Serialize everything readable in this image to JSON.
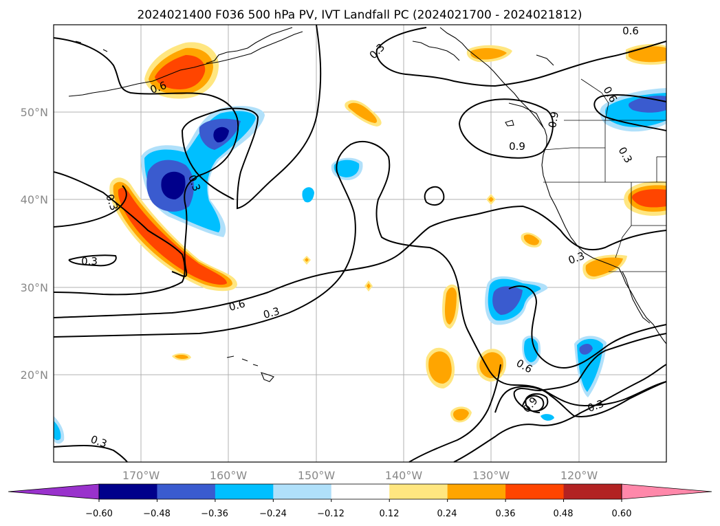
{
  "title": "2024021400 F036 500 hPa PV, IVT Landfall PC (2024021700 - 2024021812)",
  "map": {
    "lon_labels": [
      "170°W",
      "160°W",
      "150°W",
      "140°W",
      "130°W",
      "120°W"
    ],
    "lat_labels": [
      "50°N",
      "40°N",
      "30°N",
      "20°N"
    ],
    "contour_labels": [
      "0.6",
      "0.3",
      "0.6",
      "0.3",
      "0.3",
      "0.9",
      "0.3",
      "0.6",
      "0.3",
      "0.3",
      "0.6",
      "0.3",
      "0.9",
      "0.6",
      "0.9",
      "0.3",
      "0.3"
    ]
  },
  "colorbar": {
    "ticks": [
      "−0.60",
      "−0.48",
      "−0.36",
      "−0.24",
      "−0.12",
      "0.12",
      "0.24",
      "0.36",
      "0.48",
      "0.60"
    ],
    "colors": [
      "#9932cc",
      "#00008b",
      "#3a5bcf",
      "#00bfff",
      "#b0e0fa",
      "#ffffff",
      "#ffe680",
      "#ffa500",
      "#ff4500",
      "#b22222",
      "#ff88aa"
    ]
  }
}
